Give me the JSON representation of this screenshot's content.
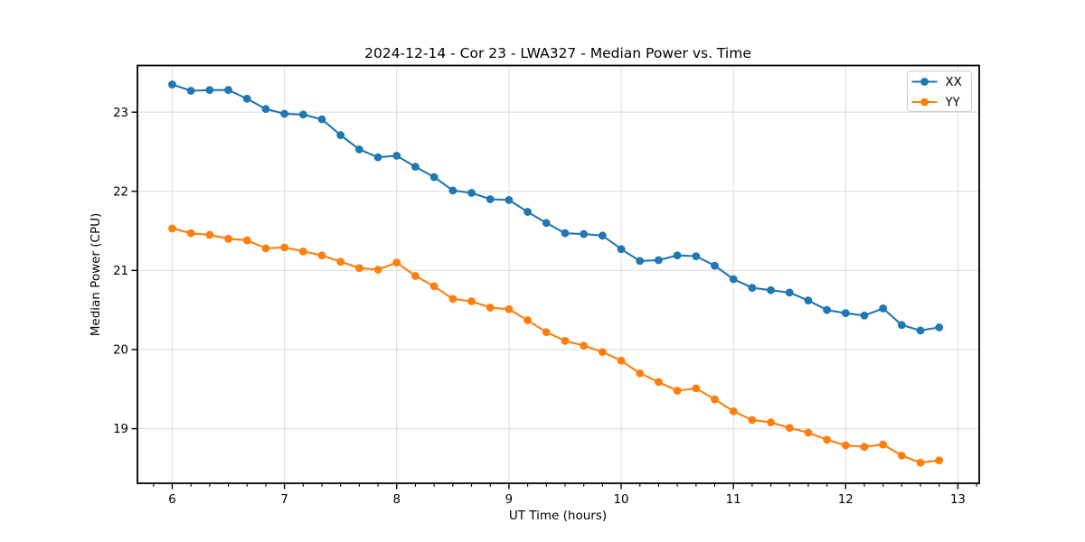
{
  "figure": {
    "background": "#ffffff"
  },
  "chart_data": {
    "type": "line",
    "title": "2024-12-14 - Cor 23 - LWA327 - Median Power vs. Time",
    "xlabel": "UT Time (hours)",
    "ylabel": "Median Power (CPU)",
    "x": [
      6.0,
      6.1667,
      6.3333,
      6.5,
      6.6667,
      6.8333,
      7.0,
      7.1667,
      7.3333,
      7.5,
      7.6667,
      7.8333,
      8.0,
      8.1667,
      8.3333,
      8.5,
      8.6667,
      8.8333,
      9.0,
      9.1667,
      9.3333,
      9.5,
      9.6667,
      9.8333,
      10.0,
      10.1667,
      10.3333,
      10.5,
      10.6667,
      10.8333,
      11.0,
      11.1667,
      11.3333,
      11.5,
      11.6667,
      11.8333,
      12.0,
      12.1667,
      12.3333,
      12.5,
      12.6667,
      12.8333
    ],
    "series": [
      {
        "name": "XX",
        "color": "#1f77b4",
        "marker": "circle",
        "values": [
          23.35,
          23.27,
          23.28,
          23.28,
          23.17,
          23.04,
          22.98,
          22.97,
          22.91,
          22.71,
          22.53,
          22.43,
          22.45,
          22.31,
          22.18,
          22.01,
          21.98,
          21.9,
          21.89,
          21.74,
          21.6,
          21.47,
          21.46,
          21.44,
          21.27,
          21.12,
          21.13,
          21.19,
          21.18,
          21.06,
          20.89,
          20.78,
          20.75,
          20.72,
          20.62,
          20.5,
          20.46,
          20.43,
          20.52,
          20.31,
          20.24,
          20.28
        ]
      },
      {
        "name": "YY",
        "color": "#ff7f0e",
        "marker": "circle",
        "values": [
          21.53,
          21.47,
          21.45,
          21.4,
          21.38,
          21.28,
          21.29,
          21.24,
          21.19,
          21.11,
          21.03,
          21.01,
          21.1,
          20.93,
          20.8,
          20.64,
          20.61,
          20.53,
          20.51,
          20.37,
          20.22,
          20.11,
          20.05,
          19.97,
          19.86,
          19.7,
          19.59,
          19.48,
          19.51,
          19.37,
          19.22,
          19.11,
          19.08,
          19.01,
          18.95,
          18.86,
          18.79,
          18.77,
          18.8,
          18.66,
          18.57,
          18.6
        ]
      }
    ],
    "xlim": [
      5.69,
      13.19
    ],
    "ylim": [
      18.31,
      23.59
    ],
    "xticks": [
      6,
      7,
      8,
      9,
      10,
      11,
      12,
      13
    ],
    "yticks": [
      19,
      20,
      21,
      22,
      23
    ],
    "x_minor_tick_step": 0.16667,
    "grid": true,
    "grid_color": "#dcdcdc",
    "axis_color": "#000000",
    "legend": {
      "position": "upper right",
      "entries": [
        "XX",
        "YY"
      ]
    }
  }
}
